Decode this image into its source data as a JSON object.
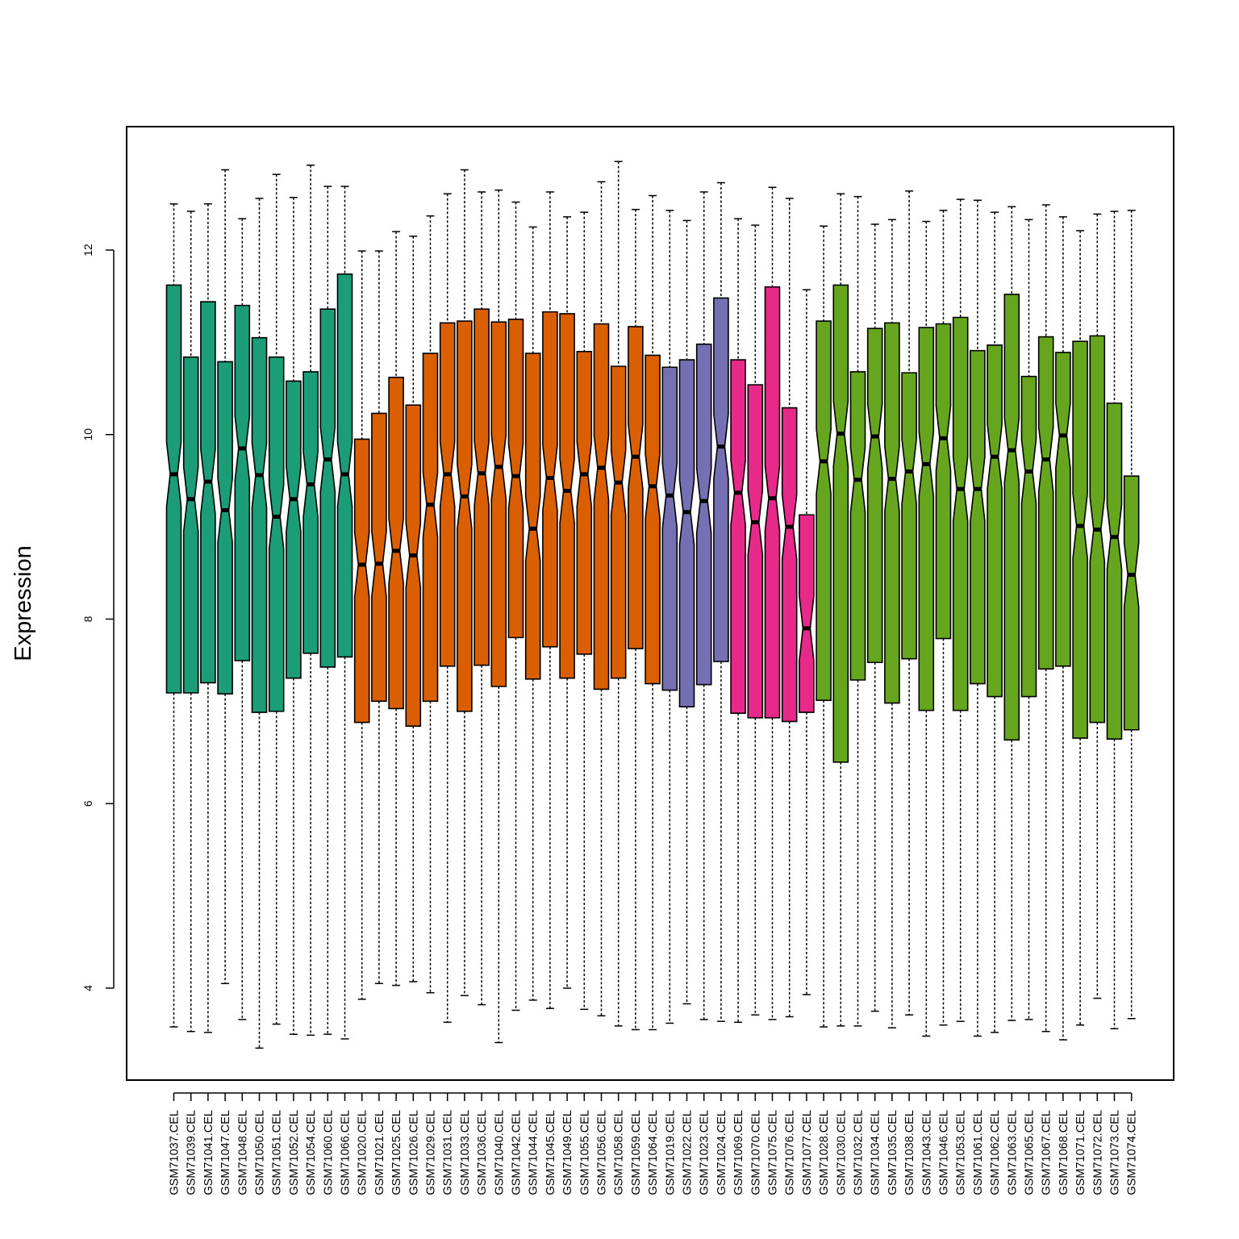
{
  "chart_data": {
    "type": "boxplot",
    "title": "",
    "xlabel": "",
    "ylabel": "Expression",
    "ylim": [
      3.0,
      13.3
    ],
    "y_ticks": [
      4,
      6,
      8,
      10,
      12
    ],
    "notched": true,
    "grid": false,
    "legend": "none",
    "group_colors": {
      "teal": "#1B9E77",
      "orange": "#D95F02",
      "purple": "#7570B3",
      "pink": "#E7298A",
      "green": "#66A61E"
    },
    "samples": [
      {
        "label": "GSM71037.CEL",
        "group": "teal",
        "whisker_low": 3.58,
        "q1": 7.2,
        "median": 9.57,
        "q3": 11.62,
        "whisker_high": 12.5
      },
      {
        "label": "GSM71039.CEL",
        "group": "teal",
        "whisker_low": 3.53,
        "q1": 7.2,
        "median": 9.3,
        "q3": 10.84,
        "whisker_high": 12.42
      },
      {
        "label": "GSM71041.CEL",
        "group": "teal",
        "whisker_low": 3.52,
        "q1": 7.31,
        "median": 9.49,
        "q3": 11.44,
        "whisker_high": 12.5
      },
      {
        "label": "GSM71047.CEL",
        "group": "teal",
        "whisker_low": 4.05,
        "q1": 7.19,
        "median": 9.18,
        "q3": 10.79,
        "whisker_high": 12.87
      },
      {
        "label": "GSM71048.CEL",
        "group": "teal",
        "whisker_low": 3.66,
        "q1": 7.55,
        "median": 9.85,
        "q3": 11.4,
        "whisker_high": 12.34
      },
      {
        "label": "GSM71050.CEL",
        "group": "teal",
        "whisker_low": 3.35,
        "q1": 6.99,
        "median": 9.56,
        "q3": 11.05,
        "whisker_high": 12.56
      },
      {
        "label": "GSM71051.CEL",
        "group": "teal",
        "whisker_low": 3.61,
        "q1": 7.0,
        "median": 9.11,
        "q3": 10.84,
        "whisker_high": 12.82
      },
      {
        "label": "GSM71052.CEL",
        "group": "teal",
        "whisker_low": 3.5,
        "q1": 7.36,
        "median": 9.3,
        "q3": 10.58,
        "whisker_high": 12.57
      },
      {
        "label": "GSM71054.CEL",
        "group": "teal",
        "whisker_low": 3.49,
        "q1": 7.63,
        "median": 9.46,
        "q3": 10.68,
        "whisker_high": 12.92
      },
      {
        "label": "GSM71060.CEL",
        "group": "teal",
        "whisker_low": 3.5,
        "q1": 7.48,
        "median": 9.73,
        "q3": 11.36,
        "whisker_high": 12.69
      },
      {
        "label": "GSM71066.CEL",
        "group": "teal",
        "whisker_low": 3.45,
        "q1": 7.59,
        "median": 9.57,
        "q3": 11.74,
        "whisker_high": 12.69
      },
      {
        "label": "GSM71020.CEL",
        "group": "orange",
        "whisker_low": 3.88,
        "q1": 6.88,
        "median": 8.59,
        "q3": 9.95,
        "whisker_high": 11.99
      },
      {
        "label": "GSM71021.CEL",
        "group": "orange",
        "whisker_low": 4.05,
        "q1": 7.11,
        "median": 8.6,
        "q3": 10.23,
        "whisker_high": 11.99
      },
      {
        "label": "GSM71025.CEL",
        "group": "orange",
        "whisker_low": 4.03,
        "q1": 7.03,
        "median": 8.74,
        "q3": 10.62,
        "whisker_high": 12.2
      },
      {
        "label": "GSM71026.CEL",
        "group": "orange",
        "whisker_low": 4.07,
        "q1": 6.84,
        "median": 8.69,
        "q3": 10.32,
        "whisker_high": 12.15
      },
      {
        "label": "GSM71029.CEL",
        "group": "orange",
        "whisker_low": 3.95,
        "q1": 7.11,
        "median": 9.24,
        "q3": 10.88,
        "whisker_high": 12.37
      },
      {
        "label": "GSM71031.CEL",
        "group": "orange",
        "whisker_low": 3.63,
        "q1": 7.49,
        "median": 9.57,
        "q3": 11.21,
        "whisker_high": 12.61
      },
      {
        "label": "GSM71033.CEL",
        "group": "orange",
        "whisker_low": 3.92,
        "q1": 7.0,
        "median": 9.33,
        "q3": 11.23,
        "whisker_high": 12.87
      },
      {
        "label": "GSM71036.CEL",
        "group": "orange",
        "whisker_low": 3.82,
        "q1": 7.5,
        "median": 9.58,
        "q3": 11.36,
        "whisker_high": 12.63
      },
      {
        "label": "GSM71040.CEL",
        "group": "orange",
        "whisker_low": 3.41,
        "q1": 7.27,
        "median": 9.65,
        "q3": 11.22,
        "whisker_high": 12.65
      },
      {
        "label": "GSM71042.CEL",
        "group": "orange",
        "whisker_low": 3.76,
        "q1": 7.8,
        "median": 9.55,
        "q3": 11.25,
        "whisker_high": 12.52
      },
      {
        "label": "GSM71044.CEL",
        "group": "orange",
        "whisker_low": 3.87,
        "q1": 7.35,
        "median": 8.98,
        "q3": 10.88,
        "whisker_high": 12.25
      },
      {
        "label": "GSM71045.CEL",
        "group": "orange",
        "whisker_low": 3.78,
        "q1": 7.7,
        "median": 9.53,
        "q3": 11.33,
        "whisker_high": 12.63
      },
      {
        "label": "GSM71049.CEL",
        "group": "orange",
        "whisker_low": 4.0,
        "q1": 7.36,
        "median": 9.39,
        "q3": 11.31,
        "whisker_high": 12.36
      },
      {
        "label": "GSM71055.CEL",
        "group": "orange",
        "whisker_low": 3.77,
        "q1": 7.62,
        "median": 9.57,
        "q3": 10.9,
        "whisker_high": 12.41
      },
      {
        "label": "GSM71056.CEL",
        "group": "orange",
        "whisker_low": 3.7,
        "q1": 7.24,
        "median": 9.64,
        "q3": 11.2,
        "whisker_high": 12.74
      },
      {
        "label": "GSM71058.CEL",
        "group": "orange",
        "whisker_low": 3.59,
        "q1": 7.36,
        "median": 9.48,
        "q3": 10.74,
        "whisker_high": 12.96
      },
      {
        "label": "GSM71059.CEL",
        "group": "orange",
        "whisker_low": 3.55,
        "q1": 7.68,
        "median": 9.76,
        "q3": 11.17,
        "whisker_high": 12.44
      },
      {
        "label": "GSM71064.CEL",
        "group": "orange",
        "whisker_low": 3.55,
        "q1": 7.3,
        "median": 9.44,
        "q3": 10.86,
        "whisker_high": 12.59
      },
      {
        "label": "GSM71019.CEL",
        "group": "purple",
        "whisker_low": 3.62,
        "q1": 7.23,
        "median": 9.34,
        "q3": 10.73,
        "whisker_high": 12.43
      },
      {
        "label": "GSM71022.CEL",
        "group": "purple",
        "whisker_low": 3.83,
        "q1": 7.05,
        "median": 9.16,
        "q3": 10.81,
        "whisker_high": 12.32
      },
      {
        "label": "GSM71023.CEL",
        "group": "purple",
        "whisker_low": 3.66,
        "q1": 7.29,
        "median": 9.28,
        "q3": 10.98,
        "whisker_high": 12.63
      },
      {
        "label": "GSM71024.CEL",
        "group": "purple",
        "whisker_low": 3.64,
        "q1": 7.54,
        "median": 9.87,
        "q3": 11.48,
        "whisker_high": 12.73
      },
      {
        "label": "GSM71069.CEL",
        "group": "pink",
        "whisker_low": 3.63,
        "q1": 6.98,
        "median": 9.37,
        "q3": 10.81,
        "whisker_high": 12.34
      },
      {
        "label": "GSM71070.CEL",
        "group": "pink",
        "whisker_low": 3.71,
        "q1": 6.93,
        "median": 9.05,
        "q3": 10.54,
        "whisker_high": 12.27
      },
      {
        "label": "GSM71075.CEL",
        "group": "pink",
        "whisker_low": 3.66,
        "q1": 6.93,
        "median": 9.31,
        "q3": 11.6,
        "whisker_high": 12.68
      },
      {
        "label": "GSM71076.CEL",
        "group": "pink",
        "whisker_low": 3.69,
        "q1": 6.89,
        "median": 9.0,
        "q3": 10.29,
        "whisker_high": 12.56
      },
      {
        "label": "GSM71077.CEL",
        "group": "pink",
        "whisker_low": 3.93,
        "q1": 6.99,
        "median": 7.9,
        "q3": 9.13,
        "whisker_high": 11.57
      },
      {
        "label": "GSM71028.CEL",
        "group": "green",
        "whisker_low": 3.58,
        "q1": 7.12,
        "median": 9.71,
        "q3": 11.23,
        "whisker_high": 12.26
      },
      {
        "label": "GSM71030.CEL",
        "group": "green",
        "whisker_low": 3.59,
        "q1": 6.45,
        "median": 10.01,
        "q3": 11.62,
        "whisker_high": 12.61
      },
      {
        "label": "GSM71032.CEL",
        "group": "green",
        "whisker_low": 3.59,
        "q1": 7.34,
        "median": 9.51,
        "q3": 10.68,
        "whisker_high": 12.58
      },
      {
        "label": "GSM71034.CEL",
        "group": "green",
        "whisker_low": 3.75,
        "q1": 7.53,
        "median": 9.98,
        "q3": 11.15,
        "whisker_high": 12.28
      },
      {
        "label": "GSM71035.CEL",
        "group": "green",
        "whisker_low": 3.57,
        "q1": 7.09,
        "median": 9.52,
        "q3": 11.21,
        "whisker_high": 12.33
      },
      {
        "label": "GSM71038.CEL",
        "group": "green",
        "whisker_low": 3.71,
        "q1": 7.57,
        "median": 9.6,
        "q3": 10.67,
        "whisker_high": 12.64
      },
      {
        "label": "GSM71043.CEL",
        "group": "green",
        "whisker_low": 3.48,
        "q1": 7.01,
        "median": 9.68,
        "q3": 11.16,
        "whisker_high": 12.31
      },
      {
        "label": "GSM71046.CEL",
        "group": "green",
        "whisker_low": 3.6,
        "q1": 7.79,
        "median": 9.96,
        "q3": 11.2,
        "whisker_high": 12.43
      },
      {
        "label": "GSM71053.CEL",
        "group": "green",
        "whisker_low": 3.64,
        "q1": 7.01,
        "median": 9.41,
        "q3": 11.27,
        "whisker_high": 12.55
      },
      {
        "label": "GSM71061.CEL",
        "group": "green",
        "whisker_low": 3.48,
        "q1": 7.3,
        "median": 9.41,
        "q3": 10.91,
        "whisker_high": 12.54
      },
      {
        "label": "GSM71062.CEL",
        "group": "green",
        "whisker_low": 3.52,
        "q1": 7.16,
        "median": 9.76,
        "q3": 10.97,
        "whisker_high": 12.41
      },
      {
        "label": "GSM71063.CEL",
        "group": "green",
        "whisker_low": 3.65,
        "q1": 6.69,
        "median": 9.83,
        "q3": 11.52,
        "whisker_high": 12.47
      },
      {
        "label": "GSM71065.CEL",
        "group": "green",
        "whisker_low": 3.66,
        "q1": 7.16,
        "median": 9.6,
        "q3": 10.63,
        "whisker_high": 12.33
      },
      {
        "label": "GSM71067.CEL",
        "group": "green",
        "whisker_low": 3.53,
        "q1": 7.46,
        "median": 9.73,
        "q3": 11.06,
        "whisker_high": 12.49
      },
      {
        "label": "GSM71068.CEL",
        "group": "green",
        "whisker_low": 3.44,
        "q1": 7.49,
        "median": 9.99,
        "q3": 10.89,
        "whisker_high": 12.36
      },
      {
        "label": "GSM71071.CEL",
        "group": "green",
        "whisker_low": 3.6,
        "q1": 6.71,
        "median": 9.01,
        "q3": 11.01,
        "whisker_high": 12.21
      },
      {
        "label": "GSM71072.CEL",
        "group": "green",
        "whisker_low": 3.89,
        "q1": 6.88,
        "median": 8.97,
        "q3": 11.07,
        "whisker_high": 12.39
      },
      {
        "label": "GSM71073.CEL",
        "group": "green",
        "whisker_low": 3.56,
        "q1": 6.7,
        "median": 8.89,
        "q3": 10.34,
        "whisker_high": 12.42
      },
      {
        "label": "GSM71074.CEL",
        "group": "green",
        "whisker_low": 3.67,
        "q1": 6.8,
        "median": 8.48,
        "q3": 9.55,
        "whisker_high": 12.43
      }
    ]
  }
}
